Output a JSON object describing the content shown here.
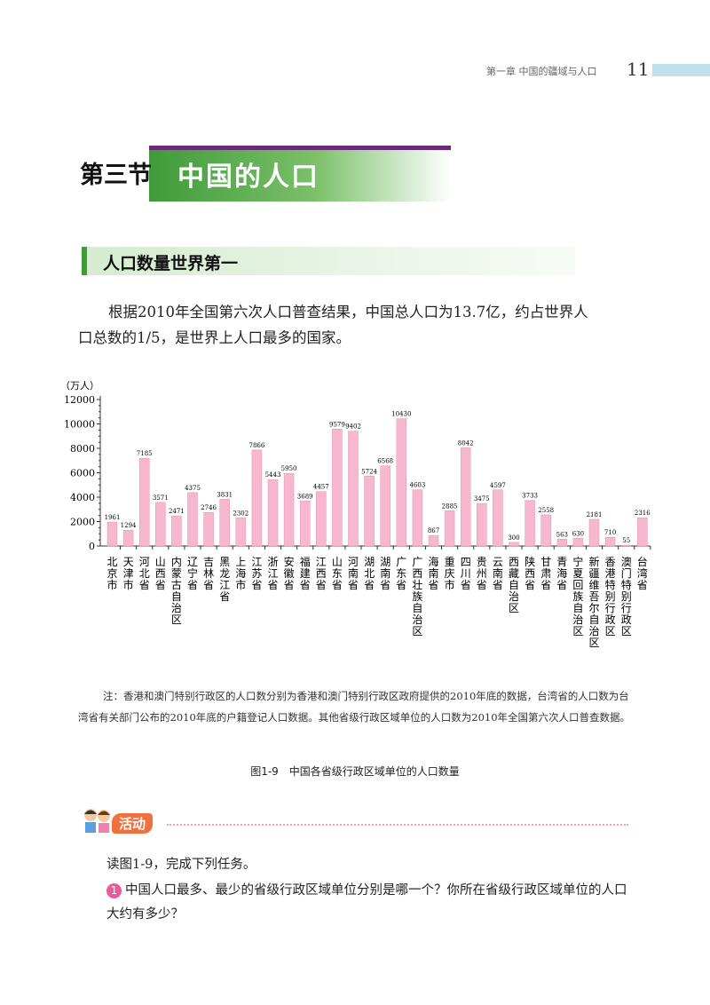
{
  "header": {
    "chapter": "第一章 中国的疆域与人口",
    "page_number": "11"
  },
  "section": {
    "number": "第三节",
    "title": "中国的人口"
  },
  "subsection": {
    "title": "人口数量世界第一"
  },
  "paragraph": "根据2010年全国第六次人口普查结果，中国总人口为13.7亿，约占世界人口总数的1/5，是世界上人口最多的国家。",
  "chart_data": {
    "type": "bar",
    "title": "",
    "ylabel": "（万人）",
    "ylim": [
      0,
      12000
    ],
    "yticks": [
      0,
      2000,
      4000,
      6000,
      8000,
      10000,
      12000
    ],
    "bar_color": "#f7b8cf",
    "categories": [
      "北京市",
      "天津市",
      "河北省",
      "山西省",
      "内蒙古自治区",
      "辽宁省",
      "吉林省",
      "黑龙江省",
      "上海市",
      "江苏省",
      "浙江省",
      "安徽省",
      "福建省",
      "江西省",
      "山东省",
      "河南省",
      "湖北省",
      "湖南省",
      "广东省",
      "广西壮族自治区",
      "海南省",
      "重庆市",
      "四川省",
      "贵州省",
      "云南省",
      "西藏自治区",
      "陕西省",
      "甘肃省",
      "青海省",
      "宁夏回族自治区",
      "新疆维吾尔自治区",
      "香港特别行政区",
      "澳门特别行政区",
      "台湾省"
    ],
    "values": [
      1961,
      1294,
      7185,
      3571,
      2471,
      4375,
      2746,
      3831,
      2302,
      7866,
      5443,
      5950,
      3689,
      4457,
      9579,
      9402,
      5724,
      6568,
      10430,
      4603,
      867,
      2885,
      8042,
      3475,
      4597,
      300,
      3733,
      2558,
      563,
      630,
      2181,
      710,
      55,
      2316
    ]
  },
  "note": "注：香港和澳门特别行政区的人口数分别为香港和澳门特别行政区政府提供的2010年底的数据，台湾省的人口数为台湾省有关部门公布的2010年底的户籍登记人口数据。其他省级行政区域单位的人口数为2010年全国第六次人口普查数据。",
  "caption": "图1-9　中国各省级行政区域单位的人口数量",
  "activity": {
    "label": "活动",
    "intro": "读图1-9，完成下列任务。",
    "task_number": "1",
    "task1": "中国人口最多、最少的省级行政区域单位分别是哪一个？你所在省级行政区域单位的人口大约有多少？"
  }
}
